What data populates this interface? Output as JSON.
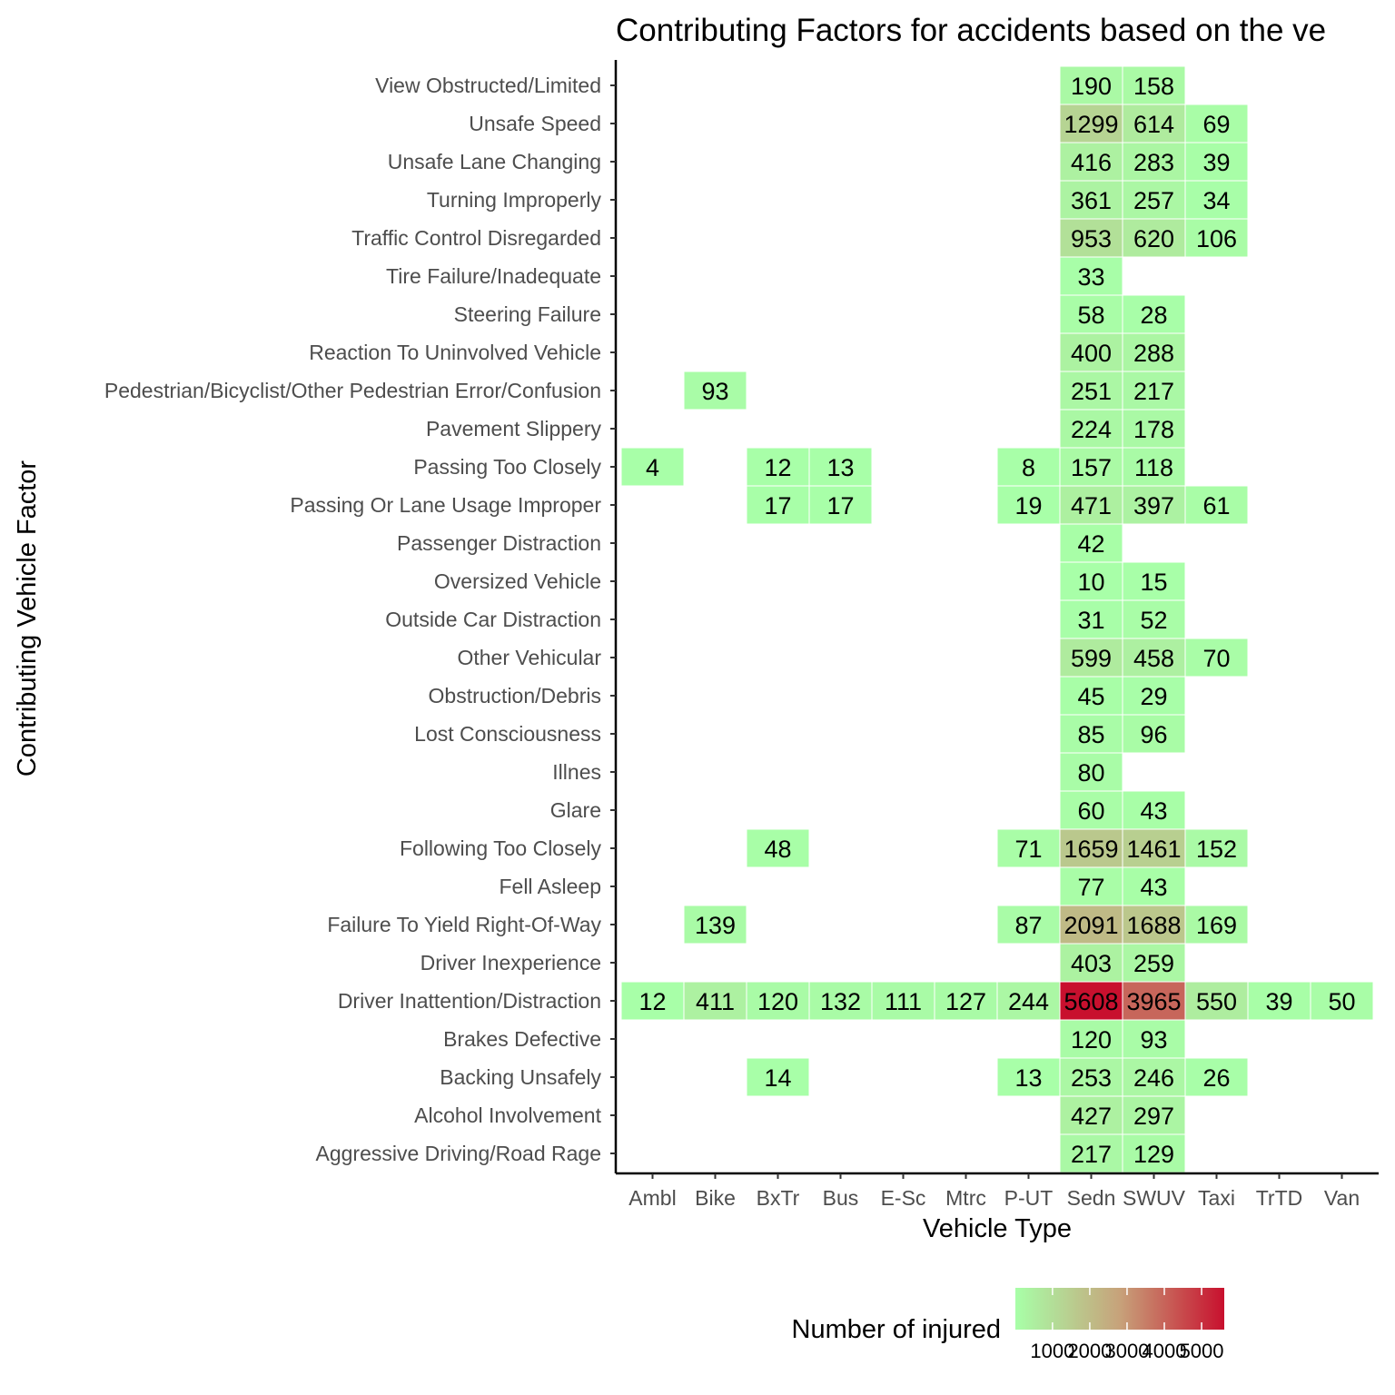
{
  "chart_data": {
    "type": "heatmap",
    "title": "Contributing Factors for accidents based on the ve",
    "xlabel": "Vehicle Type",
    "ylabel": "Contributing Vehicle Factor",
    "x": [
      "Ambl",
      "Bike",
      "BxTr",
      "Bus",
      "E-Sc",
      "Mtrc",
      "P-UT",
      "Sedn",
      "SWUV",
      "Taxi",
      "TrTD",
      "Van"
    ],
    "y": [
      "View Obstructed/Limited",
      "Unsafe Speed",
      "Unsafe Lane Changing",
      "Turning Improperly",
      "Traffic Control Disregarded",
      "Tire Failure/Inadequate",
      "Steering Failure",
      "Reaction To Uninvolved Vehicle",
      "Pedestrian/Bicyclist/Other Pedestrian Error/Confusion",
      "Pavement Slippery",
      "Passing Too Closely",
      "Passing Or Lane Usage Improper",
      "Passenger Distraction",
      "Oversized Vehicle",
      "Outside Car Distraction",
      "Other Vehicular",
      "Obstruction/Debris",
      "Lost Consciousness",
      "Illnes",
      "Glare",
      "Following Too Closely",
      "Fell Asleep",
      "Failure To Yield Right-Of-Way",
      "Driver Inexperience",
      "Driver Inattention/Distraction",
      "Brakes Defective",
      "Backing Unsafely",
      "Alcohol Involvement",
      "Aggressive Driving/Road Rage"
    ],
    "values": [
      [
        null,
        null,
        null,
        null,
        null,
        null,
        null,
        190,
        158,
        null,
        null,
        null
      ],
      [
        null,
        null,
        null,
        null,
        null,
        null,
        null,
        1299,
        614,
        69,
        null,
        null
      ],
      [
        null,
        null,
        null,
        null,
        null,
        null,
        null,
        416,
        283,
        39,
        null,
        null
      ],
      [
        null,
        null,
        null,
        null,
        null,
        null,
        null,
        361,
        257,
        34,
        null,
        null
      ],
      [
        null,
        null,
        null,
        null,
        null,
        null,
        null,
        953,
        620,
        106,
        null,
        null
      ],
      [
        null,
        null,
        null,
        null,
        null,
        null,
        null,
        33,
        null,
        null,
        null,
        null
      ],
      [
        null,
        null,
        null,
        null,
        null,
        null,
        null,
        58,
        28,
        null,
        null,
        null
      ],
      [
        null,
        null,
        null,
        null,
        null,
        null,
        null,
        400,
        288,
        null,
        null,
        null
      ],
      [
        null,
        93,
        null,
        null,
        null,
        null,
        null,
        251,
        217,
        null,
        null,
        null
      ],
      [
        null,
        null,
        null,
        null,
        null,
        null,
        null,
        224,
        178,
        null,
        null,
        null
      ],
      [
        4,
        null,
        12,
        13,
        null,
        null,
        8,
        157,
        118,
        null,
        null,
        null
      ],
      [
        null,
        null,
        17,
        17,
        null,
        null,
        19,
        471,
        397,
        61,
        null,
        null
      ],
      [
        null,
        null,
        null,
        null,
        null,
        null,
        null,
        42,
        null,
        null,
        null,
        null
      ],
      [
        null,
        null,
        null,
        null,
        null,
        null,
        null,
        10,
        15,
        null,
        null,
        null
      ],
      [
        null,
        null,
        null,
        null,
        null,
        null,
        null,
        31,
        52,
        null,
        null,
        null
      ],
      [
        null,
        null,
        null,
        null,
        null,
        null,
        null,
        599,
        458,
        70,
        null,
        null
      ],
      [
        null,
        null,
        null,
        null,
        null,
        null,
        null,
        45,
        29,
        null,
        null,
        null
      ],
      [
        null,
        null,
        null,
        null,
        null,
        null,
        null,
        85,
        96,
        null,
        null,
        null
      ],
      [
        null,
        null,
        null,
        null,
        null,
        null,
        null,
        80,
        null,
        null,
        null,
        null
      ],
      [
        null,
        null,
        null,
        null,
        null,
        null,
        null,
        60,
        43,
        null,
        null,
        null
      ],
      [
        null,
        null,
        48,
        null,
        null,
        null,
        71,
        1659,
        1461,
        152,
        null,
        null
      ],
      [
        null,
        null,
        null,
        null,
        null,
        null,
        null,
        77,
        43,
        null,
        null,
        null
      ],
      [
        null,
        139,
        null,
        null,
        null,
        null,
        87,
        2091,
        1688,
        169,
        null,
        null
      ],
      [
        null,
        null,
        null,
        null,
        null,
        null,
        null,
        403,
        259,
        null,
        null,
        null
      ],
      [
        12,
        411,
        120,
        132,
        111,
        127,
        244,
        5608,
        3965,
        550,
        39,
        50
      ],
      [
        null,
        null,
        null,
        null,
        null,
        null,
        null,
        120,
        93,
        null,
        null,
        null
      ],
      [
        null,
        null,
        14,
        null,
        null,
        null,
        13,
        253,
        246,
        26,
        null,
        null
      ],
      [
        null,
        null,
        null,
        null,
        null,
        null,
        null,
        427,
        297,
        null,
        null,
        null
      ],
      [
        null,
        null,
        null,
        null,
        null,
        null,
        null,
        217,
        129,
        null,
        null,
        null
      ]
    ],
    "color_scale": {
      "low": "#A8FFA8",
      "mid": "#C7A27A",
      "high": "#C8102E",
      "range": [
        4,
        5608
      ]
    },
    "legend": {
      "title": "Number of injured",
      "ticks": [
        1000,
        2000,
        3000,
        4000,
        5000
      ],
      "placement": "bottom"
    }
  }
}
